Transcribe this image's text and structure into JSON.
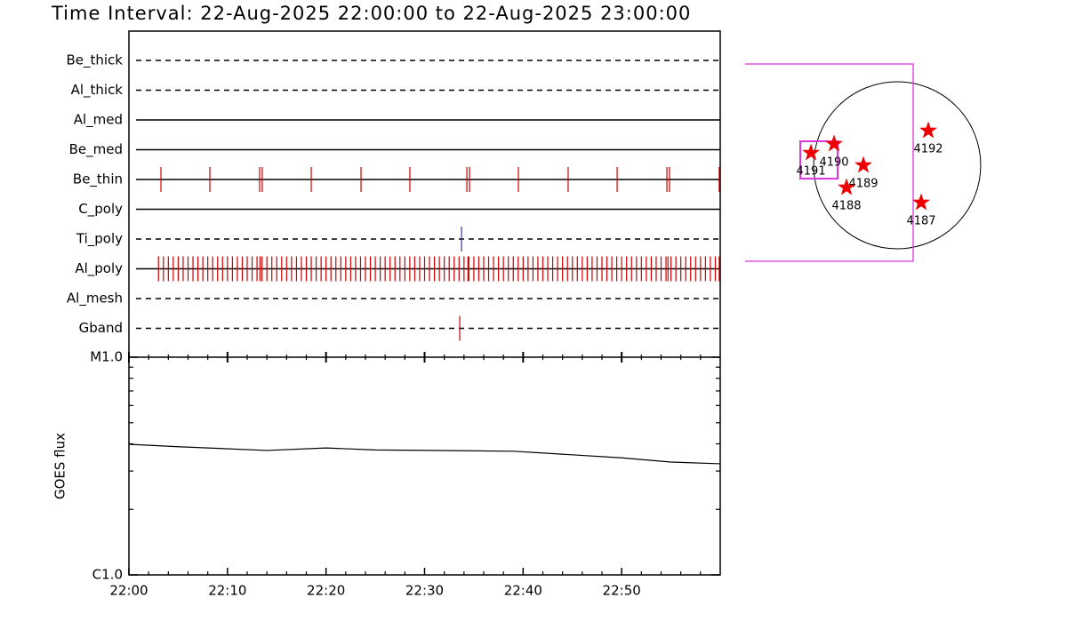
{
  "chart_data": [
    {
      "type": "timeline",
      "title": "Time Interval: 22-Aug-2025 22:00:00 to 22-Aug-2025 23:00:00",
      "xlim": [
        0,
        60
      ],
      "xticks": [
        {
          "value": 0,
          "label": "22:00"
        },
        {
          "value": 10,
          "label": "22:10"
        },
        {
          "value": 20,
          "label": "22:20"
        },
        {
          "value": 30,
          "label": "22:30"
        },
        {
          "value": 40,
          "label": "22:40"
        },
        {
          "value": 50,
          "label": "22:50"
        }
      ],
      "xminor_ticks": [
        2,
        4,
        6,
        8,
        12,
        14,
        16,
        18,
        22,
        24,
        26,
        28,
        32,
        34,
        36,
        38,
        42,
        44,
        46,
        48,
        52,
        54,
        56,
        58
      ],
      "rows": [
        {
          "name": "Be_thick",
          "style": "dashed",
          "color": "#cc0000",
          "values": []
        },
        {
          "name": "Al_thick",
          "style": "dashed",
          "color": "#cc0000",
          "values": []
        },
        {
          "name": "Al_med",
          "style": "solid",
          "color": "#cc0000",
          "values": []
        },
        {
          "name": "Be_med",
          "style": "solid",
          "color": "#cc0000",
          "values": []
        },
        {
          "name": "Be_thin",
          "style": "solid",
          "color": "#cc0000",
          "values": [
            3.25,
            8.21,
            13.26,
            13.53,
            18.5,
            23.55,
            28.51,
            34.29,
            34.56,
            39.52,
            44.57,
            49.54,
            54.59,
            54.86,
            59.9
          ]
        },
        {
          "name": "C_poly",
          "style": "solid",
          "color": "#cc0000",
          "values": []
        },
        {
          "name": "Ti_poly",
          "style": "dashed",
          "color": "#333399",
          "values": [
            33.75
          ]
        },
        {
          "name": "Al_poly",
          "style": "solid",
          "color": "#cc0000",
          "values": [
            3,
            3.5,
            4,
            4.5,
            5,
            5.5,
            6,
            6.5,
            7,
            7.5,
            8,
            8.5,
            9,
            9.5,
            10,
            10.5,
            11,
            11.5,
            12,
            12.5,
            13,
            13.3,
            13.5,
            14,
            14.5,
            15,
            15.5,
            16,
            16.5,
            17,
            17.5,
            18,
            18.5,
            19,
            19.5,
            20,
            20.5,
            21,
            21.5,
            22,
            22.5,
            23,
            23.5,
            24,
            24.5,
            25,
            25.5,
            26,
            26.5,
            27,
            27.5,
            28,
            28.5,
            29,
            29.5,
            30,
            30.5,
            31,
            31.5,
            32,
            32.5,
            33,
            33.5,
            34,
            34.4,
            34.5,
            35,
            35.5,
            36,
            36.5,
            37,
            37.5,
            38,
            38.5,
            39,
            39.5,
            40,
            40.5,
            41,
            41.5,
            42,
            42.5,
            43,
            43.5,
            44,
            44.5,
            45,
            45.5,
            46,
            46.5,
            47,
            47.5,
            48,
            48.5,
            49,
            49.5,
            50,
            50.5,
            51,
            51.5,
            52,
            52.5,
            53,
            53.5,
            54,
            54.5,
            54.7,
            55,
            55.5,
            56,
            56.5,
            57,
            57.5,
            58,
            58.5,
            59,
            59.5,
            59.9
          ]
        },
        {
          "name": "Al_mesh",
          "style": "dashed",
          "color": "#cc0000",
          "values": []
        },
        {
          "name": "Gband",
          "style": "dashed",
          "color": "#cc0000",
          "values": [
            33.57
          ]
        }
      ]
    },
    {
      "type": "line",
      "ylabel": "GOES flux",
      "log": true,
      "color": "#000000",
      "x": [
        0,
        5,
        14,
        20,
        25,
        39,
        50,
        55,
        60
      ],
      "values": [
        3.98e-06,
        3.88e-06,
        3.73e-06,
        3.83e-06,
        3.75e-06,
        3.7e-06,
        3.45e-06,
        3.3e-06,
        3.24e-06
      ],
      "xlim": [
        0,
        60
      ],
      "ylim": [
        1e-06,
        1e-05
      ],
      "yticks": [
        {
          "value": 1e-05,
          "label": "M1.0"
        },
        {
          "value": 1e-06,
          "label": "C1.0"
        }
      ],
      "yminor_ticks": [
        2e-06,
        3e-06,
        4e-06,
        5e-06,
        6e-06,
        7e-06,
        8e-06,
        9e-06
      ]
    },
    {
      "type": "map",
      "solar_radius": 950,
      "fov": {
        "x": [
          -1729,
          182
        ],
        "y": [
          -1092,
          1153
        ]
      },
      "box": {
        "x": [
          -1102,
          -677
        ],
        "y": [
          -152,
          273
        ]
      },
      "regions": [
        {
          "name": "4191",
          "x": -980,
          "y": 141
        },
        {
          "name": "4190",
          "x": -718,
          "y": 243
        },
        {
          "name": "4189",
          "x": -384,
          "y": 0
        },
        {
          "name": "4188",
          "x": -576,
          "y": -253
        },
        {
          "name": "4192",
          "x": 354,
          "y": 394
        },
        {
          "name": "4187",
          "x": 273,
          "y": -425
        }
      ]
    }
  ]
}
